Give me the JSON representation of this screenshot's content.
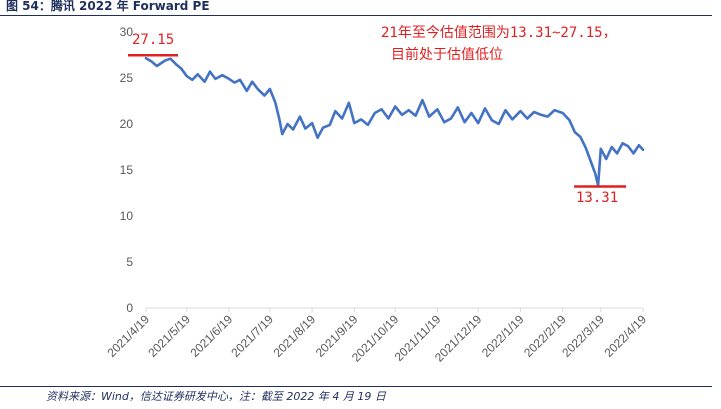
{
  "figure": {
    "title": "图 54：腾讯 2022 年 Forward PE",
    "source": "资料来源：Wind，信达证券研发中心，注：截至 2022 年 4 月 19 日"
  },
  "annotations": {
    "range_line1": "21年至今估值范围为13.31~27.15，",
    "range_line2": "目前处于估值低位",
    "max_label": "27.15",
    "min_label": "13.31"
  },
  "colors": {
    "series": "#4472c4",
    "annotation": "#e02020",
    "axis": "#d9d9d9",
    "text": "#595959"
  },
  "chart_data": {
    "type": "line",
    "title": "",
    "xlabel": "",
    "ylabel": "",
    "ylim": [
      0,
      30
    ],
    "yticks": [
      0,
      5,
      10,
      15,
      20,
      25,
      30
    ],
    "xticks": [
      "2021/4/19",
      "2021/5/19",
      "2021/6/19",
      "2021/7/19",
      "2021/8/19",
      "2021/9/19",
      "2021/10/19",
      "2021/11/19",
      "2021/12/19",
      "2022/1/19",
      "2022/2/19",
      "2022/3/19",
      "2022/4/19"
    ],
    "grid": false,
    "legend": "none",
    "max": 27.15,
    "min": 13.31,
    "series": [
      {
        "x": [
          "2021/4/19",
          "2021/4/23",
          "2021/4/27",
          "2021/5/3",
          "2021/5/7",
          "2021/5/11",
          "2021/5/15",
          "2021/5/19",
          "2021/5/23",
          "2021/5/27",
          "2021/6/1",
          "2021/6/5",
          "2021/6/9",
          "2021/6/14",
          "2021/6/19",
          "2021/6/23",
          "2021/6/27",
          "2021/7/2",
          "2021/7/6",
          "2021/7/10",
          "2021/7/15",
          "2021/7/19",
          "2021/7/23",
          "2021/7/26",
          "2021/7/28",
          "2021/8/1",
          "2021/8/5",
          "2021/8/10",
          "2021/8/14",
          "2021/8/19",
          "2021/8/23",
          "2021/8/27",
          "2021/9/1",
          "2021/9/5",
          "2021/9/10",
          "2021/9/15",
          "2021/9/19",
          "2021/9/24",
          "2021/9/29",
          "2021/10/4",
          "2021/10/9",
          "2021/10/14",
          "2021/10/19",
          "2021/10/24",
          "2021/10/29",
          "2021/11/3",
          "2021/11/8",
          "2021/11/13",
          "2021/11/19",
          "2021/11/24",
          "2021/11/29",
          "2021/12/4",
          "2021/12/9",
          "2021/12/14",
          "2021/12/19",
          "2021/12/24",
          "2021/12/29",
          "2022/1/3",
          "2022/1/8",
          "2022/1/13",
          "2022/1/19",
          "2022/1/24",
          "2022/1/29",
          "2022/2/3",
          "2022/2/8",
          "2022/2/13",
          "2022/2/19",
          "2022/2/24",
          "2022/2/28",
          "2022/3/4",
          "2022/3/8",
          "2022/3/11",
          "2022/3/15",
          "2022/3/17",
          "2022/3/19",
          "2022/3/23",
          "2022/3/27",
          "2022/3/31",
          "2022/4/4",
          "2022/4/8",
          "2022/4/12",
          "2022/4/16",
          "2022/4/19"
        ],
        "y": [
          27.15,
          26.8,
          26.3,
          26.9,
          27.1,
          26.5,
          26.0,
          25.2,
          24.8,
          25.4,
          24.6,
          25.7,
          24.9,
          25.3,
          24.9,
          24.5,
          24.8,
          23.6,
          24.6,
          23.8,
          23.1,
          23.8,
          22.3,
          20.5,
          18.9,
          20.0,
          19.4,
          20.8,
          19.5,
          20.1,
          18.5,
          19.6,
          19.9,
          21.4,
          20.6,
          22.3,
          20.1,
          20.5,
          19.9,
          21.2,
          21.6,
          20.6,
          21.9,
          21.0,
          21.5,
          20.9,
          22.6,
          20.8,
          21.6,
          20.2,
          20.6,
          21.8,
          20.2,
          21.2,
          20.1,
          21.7,
          20.4,
          20.0,
          21.5,
          20.5,
          21.4,
          20.6,
          21.3,
          21.0,
          20.8,
          21.5,
          21.2,
          20.4,
          19.1,
          18.6,
          17.4,
          16.2,
          14.6,
          13.31,
          17.3,
          16.2,
          17.5,
          16.8,
          17.9,
          17.6,
          16.8,
          17.7,
          17.2
        ]
      }
    ]
  }
}
